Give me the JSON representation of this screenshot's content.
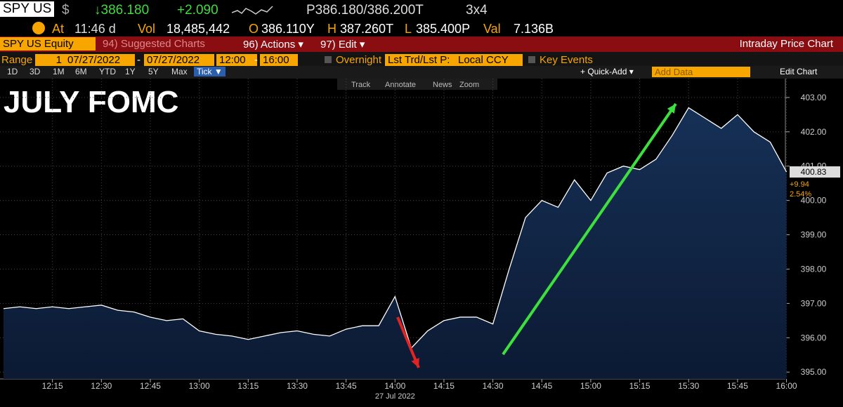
{
  "quote": {
    "ticker": "SPY US",
    "currency": "$",
    "last": "↓386.180",
    "change": "+2.090",
    "bidask": "P386.180/386.200T",
    "size": "3x4",
    "time_prefix": "At",
    "time": "11:46 d",
    "vol_label": "Vol",
    "vol": "18,485,442",
    "open_label": "O",
    "open": "386.110Y",
    "high_label": "H",
    "high": "387.260T",
    "low_label": "L",
    "low": "385.400P",
    "val_label": "Val",
    "val": "7.136B"
  },
  "toolbar": {
    "security": "SPY US Equity",
    "buttons": [
      "94) Suggested Charts",
      "96) Actions ▾",
      "97) Edit ▾"
    ],
    "title": "Intraday Price Chart"
  },
  "range": {
    "label": "Range",
    "period": "1",
    "start_date": "07/27/2022",
    "separator": "-",
    "end_date": "07/27/2022",
    "start_time": "12:00",
    "end_time": "16:00",
    "overnight": "Overnight",
    "price_type": "Lst Trd/Lst P:",
    "currency": "Local CCY",
    "key_events": "Key Events"
  },
  "periods": [
    "1D",
    "3D",
    "1M",
    "6M",
    "YTD",
    "1Y",
    "5Y",
    "Max",
    "Tick ▼"
  ],
  "quick_add": "+ Quick-Add ▾",
  "add_data": "Add Data",
  "edit_chart": "Edit Chart",
  "chart_tools": [
    "Track",
    "Annotate",
    "News",
    "Zoom"
  ],
  "chart_data": {
    "type": "line",
    "annotation": "JULY FOMC",
    "color": "#ffffff",
    "x": [
      "12:00",
      "12:05",
      "12:10",
      "12:15",
      "12:20",
      "12:25",
      "12:30",
      "12:35",
      "12:40",
      "12:45",
      "12:50",
      "12:55",
      "13:00",
      "13:05",
      "13:10",
      "13:15",
      "13:20",
      "13:25",
      "13:30",
      "13:35",
      "13:40",
      "13:45",
      "13:50",
      "13:55",
      "14:00",
      "14:05",
      "14:10",
      "14:15",
      "14:20",
      "14:25",
      "14:30",
      "14:35",
      "14:40",
      "14:45",
      "14:50",
      "14:55",
      "15:00",
      "15:05",
      "15:10",
      "15:15",
      "15:20",
      "15:25",
      "15:30",
      "15:35",
      "15:40",
      "15:45",
      "15:50",
      "15:55",
      "16:00"
    ],
    "values": [
      396.85,
      396.9,
      396.85,
      396.9,
      396.85,
      396.9,
      396.95,
      396.8,
      396.75,
      396.6,
      396.5,
      396.55,
      396.2,
      396.1,
      396.05,
      395.95,
      396.05,
      396.15,
      396.2,
      396.1,
      396.05,
      396.25,
      396.35,
      396.35,
      397.2,
      395.7,
      396.2,
      396.5,
      396.6,
      396.6,
      396.4,
      398.0,
      399.5,
      400.0,
      399.8,
      400.6,
      400.0,
      400.8,
      401.0,
      400.9,
      401.2,
      401.9,
      402.7,
      402.4,
      402.1,
      402.5,
      402.0,
      401.7,
      400.83
    ],
    "xticks": [
      "12:15",
      "12:30",
      "12:45",
      "13:00",
      "13:15",
      "13:30",
      "13:45",
      "14:00",
      "14:15",
      "14:30",
      "14:45",
      "15:00",
      "15:15",
      "15:30",
      "15:45",
      "16:00"
    ],
    "date_label": "27 Jul 2022",
    "ylim": [
      394.8,
      403.55
    ],
    "yticks": [
      {
        "value": 395,
        "label": "395.00"
      },
      {
        "value": 396,
        "label": "396.00"
      },
      {
        "value": 397,
        "label": "397.00"
      },
      {
        "value": 398,
        "label": "398.00"
      },
      {
        "value": 399,
        "label": "399.00"
      },
      {
        "value": 400,
        "label": "400.00"
      },
      {
        "value": 401,
        "label": "401.00"
      },
      {
        "value": 402,
        "label": "402.00"
      },
      {
        "value": 403,
        "label": "403.00"
      }
    ],
    "last_label": {
      "price": "400.83",
      "change": "+9.94",
      "pct": "2.54%"
    },
    "grid": true
  }
}
